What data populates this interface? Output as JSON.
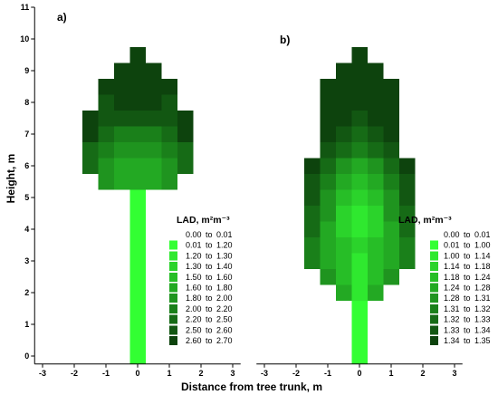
{
  "figure": {
    "xlabel": "Distance from tree trunk, m",
    "ylabel": "Height, m"
  },
  "chart_data": [
    {
      "type": "heatmap",
      "panel_label": "a)",
      "xlim": [
        -3.25,
        3.25
      ],
      "ylim": [
        -0.25,
        11
      ],
      "grid": false,
      "x_ticks": [
        -3,
        -2,
        -1,
        0,
        1,
        2,
        3
      ],
      "y_ticks": [
        0,
        1,
        2,
        3,
        4,
        5,
        6,
        7,
        8,
        9,
        10,
        11
      ],
      "legend": {
        "title": "LAD, m²m⁻³",
        "legend_placement": "lower-right",
        "entries": [
          {
            "label": "0.00 to 0.01",
            "color": "#ffffff"
          },
          {
            "label": "0.01 to 1.20",
            "color": "#33ff33"
          },
          {
            "label": "1.20 to 1.30",
            "color": "#2fe82f"
          },
          {
            "label": "1.30 to 1.40",
            "color": "#2bd32b"
          },
          {
            "label": "1.50 to 1.60",
            "color": "#27be27"
          },
          {
            "label": "1.60 to 1.80",
            "color": "#23a923"
          },
          {
            "label": "1.80 to 2.00",
            "color": "#1f941f"
          },
          {
            "label": "2.00 to 2.20",
            "color": "#1a801a"
          },
          {
            "label": "2.20 to 2.50",
            "color": "#166b16"
          },
          {
            "label": "2.50 to 2.60",
            "color": "#125712"
          },
          {
            "label": "2.60 to 2.70",
            "color": "#0d430d"
          }
        ]
      },
      "cells": [
        {
          "y": 9.5,
          "x": [
            0
          ],
          "cls": [
            10
          ]
        },
        {
          "y": 9.0,
          "x": [
            -0.5,
            0,
            0.5
          ],
          "cls": [
            10,
            10,
            10
          ]
        },
        {
          "y": 8.5,
          "x": [
            -1,
            -0.5,
            0,
            0.5,
            1
          ],
          "cls": [
            10,
            10,
            10,
            10,
            10
          ]
        },
        {
          "y": 8.0,
          "x": [
            -1,
            -0.5,
            0,
            0.5,
            1
          ],
          "cls": [
            9,
            10,
            10,
            10,
            9
          ]
        },
        {
          "y": 7.5,
          "x": [
            -1.5,
            -1,
            -0.5,
            0,
            0.5,
            1,
            1.5
          ],
          "cls": [
            10,
            9,
            9,
            9,
            9,
            9,
            10
          ]
        },
        {
          "y": 7.0,
          "x": [
            -1.5,
            -1,
            -0.5,
            0,
            0.5,
            1,
            1.5
          ],
          "cls": [
            10,
            8,
            7,
            7,
            7,
            8,
            10
          ]
        },
        {
          "y": 6.5,
          "x": [
            -1.5,
            -1,
            -0.5,
            0,
            0.5,
            1,
            1.5
          ],
          "cls": [
            8,
            7,
            6,
            6,
            6,
            7,
            8
          ]
        },
        {
          "y": 6.0,
          "x": [
            -1.5,
            -1,
            -0.5,
            0,
            0.5,
            1,
            1.5
          ],
          "cls": [
            8,
            6,
            5,
            5,
            5,
            6,
            8
          ]
        },
        {
          "y": 5.5,
          "x": [
            -1,
            -0.5,
            0,
            0.5,
            1
          ],
          "cls": [
            6,
            5,
            5,
            5,
            6
          ]
        },
        {
          "y": 5.0,
          "x": [
            0
          ],
          "cls": [
            1
          ]
        },
        {
          "y": 4.5,
          "x": [
            0
          ],
          "cls": [
            1
          ]
        },
        {
          "y": 4.0,
          "x": [
            0
          ],
          "cls": [
            1
          ]
        },
        {
          "y": 3.5,
          "x": [
            0
          ],
          "cls": [
            1
          ]
        },
        {
          "y": 3.0,
          "x": [
            0
          ],
          "cls": [
            1
          ]
        },
        {
          "y": 2.5,
          "x": [
            0
          ],
          "cls": [
            1
          ]
        },
        {
          "y": 2.0,
          "x": [
            0
          ],
          "cls": [
            1
          ]
        },
        {
          "y": 1.5,
          "x": [
            0
          ],
          "cls": [
            1
          ]
        },
        {
          "y": 1.0,
          "x": [
            0
          ],
          "cls": [
            1
          ]
        },
        {
          "y": 0.5,
          "x": [
            0
          ],
          "cls": [
            1
          ]
        },
        {
          "y": 0.0,
          "x": [
            0
          ],
          "cls": [
            1
          ]
        }
      ]
    },
    {
      "type": "heatmap",
      "panel_label": "b)",
      "xlim": [
        -3.25,
        3.25
      ],
      "ylim": [
        -0.25,
        11
      ],
      "grid": false,
      "x_ticks": [
        -3,
        -2,
        -1,
        0,
        1,
        2,
        3
      ],
      "legend": {
        "title": "LAD, m²m⁻³",
        "legend_placement": "lower-right",
        "entries": [
          {
            "label": "0.00 to 0.01",
            "color": "#ffffff"
          },
          {
            "label": "0.01 to 1.00",
            "color": "#33ff33"
          },
          {
            "label": "1.00 to 1.14",
            "color": "#2fe82f"
          },
          {
            "label": "1.14 to 1.18",
            "color": "#2bd32b"
          },
          {
            "label": "1.18 to 1.24",
            "color": "#27be27"
          },
          {
            "label": "1.24 to 1.28",
            "color": "#23a923"
          },
          {
            "label": "1.28 to 1.31",
            "color": "#1f941f"
          },
          {
            "label": "1.31 to 1.32",
            "color": "#1a801a"
          },
          {
            "label": "1.32 to 1.33",
            "color": "#166b16"
          },
          {
            "label": "1.33 to 1.34",
            "color": "#125712"
          },
          {
            "label": "1.34 to 1.35",
            "color": "#0d430d"
          }
        ]
      },
      "cells": [
        {
          "y": 9.5,
          "x": [
            0
          ],
          "cls": [
            10
          ]
        },
        {
          "y": 9.0,
          "x": [
            -0.5,
            0,
            0.5
          ],
          "cls": [
            10,
            10,
            10
          ]
        },
        {
          "y": 8.5,
          "x": [
            -1,
            -0.5,
            0,
            0.5,
            1
          ],
          "cls": [
            10,
            10,
            10,
            10,
            10
          ]
        },
        {
          "y": 8.0,
          "x": [
            -1,
            -0.5,
            0,
            0.5,
            1
          ],
          "cls": [
            10,
            10,
            10,
            10,
            10
          ]
        },
        {
          "y": 7.5,
          "x": [
            -1,
            -0.5,
            0,
            0.5,
            1
          ],
          "cls": [
            10,
            10,
            9,
            10,
            10
          ]
        },
        {
          "y": 7.0,
          "x": [
            -1,
            -0.5,
            0,
            0.5,
            1
          ],
          "cls": [
            10,
            9,
            8,
            9,
            10
          ]
        },
        {
          "y": 6.5,
          "x": [
            -1,
            -0.5,
            0,
            0.5,
            1
          ],
          "cls": [
            9,
            8,
            7,
            8,
            9
          ]
        },
        {
          "y": 6.0,
          "x": [
            -1.5,
            -1,
            -0.5,
            0,
            0.5,
            1,
            1.5
          ],
          "cls": [
            10,
            8,
            6,
            5,
            6,
            8,
            10
          ]
        },
        {
          "y": 5.5,
          "x": [
            -1.5,
            -1,
            -0.5,
            0,
            0.5,
            1,
            1.5
          ],
          "cls": [
            9,
            7,
            5,
            4,
            5,
            7,
            9
          ]
        },
        {
          "y": 5.0,
          "x": [
            -1.5,
            -1,
            -0.5,
            0,
            0.5,
            1,
            1.5
          ],
          "cls": [
            9,
            6,
            4,
            3,
            4,
            6,
            9
          ]
        },
        {
          "y": 4.5,
          "x": [
            -1.5,
            -1,
            -0.5,
            0,
            0.5,
            1,
            1.5
          ],
          "cls": [
            8,
            6,
            3,
            2,
            3,
            6,
            8
          ]
        },
        {
          "y": 4.0,
          "x": [
            -1.5,
            -1,
            -0.5,
            0,
            0.5,
            1,
            1.5
          ],
          "cls": [
            8,
            5,
            3,
            2,
            3,
            5,
            8
          ]
        },
        {
          "y": 3.5,
          "x": [
            -1.5,
            -1,
            -0.5,
            0,
            0.5,
            1,
            1.5
          ],
          "cls": [
            7,
            5,
            4,
            3,
            4,
            5,
            7
          ]
        },
        {
          "y": 3.0,
          "x": [
            -1.5,
            -1,
            -0.5,
            0,
            0.5,
            1,
            1.5
          ],
          "cls": [
            7,
            5,
            4,
            2,
            4,
            5,
            7
          ]
        },
        {
          "y": 2.5,
          "x": [
            -1,
            -0.5,
            0,
            0.5,
            1
          ],
          "cls": [
            6,
            4,
            2,
            4,
            6
          ]
        },
        {
          "y": 2.0,
          "x": [
            -0.5,
            0,
            0.5
          ],
          "cls": [
            5,
            2,
            5
          ]
        },
        {
          "y": 1.5,
          "x": [
            0
          ],
          "cls": [
            1
          ]
        },
        {
          "y": 1.0,
          "x": [
            0
          ],
          "cls": [
            1
          ]
        },
        {
          "y": 0.5,
          "x": [
            0
          ],
          "cls": [
            1
          ]
        },
        {
          "y": 0.0,
          "x": [
            0
          ],
          "cls": [
            1
          ]
        }
      ]
    }
  ]
}
